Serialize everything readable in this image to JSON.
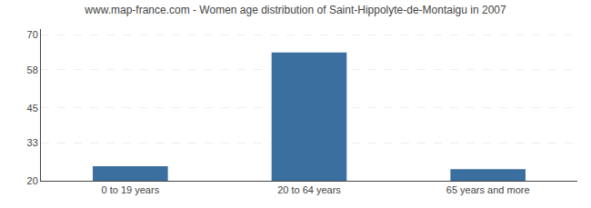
{
  "chart_data": {
    "type": "bar",
    "title": "www.map-france.com - Women age distribution of Saint-Hippolyte-de-Montaigu in 2007",
    "categories": [
      "0 to 19 years",
      "20 to 64 years",
      "65 years and more"
    ],
    "values": [
      25,
      64,
      24
    ],
    "color": "#3a6f9f",
    "ylim": [
      20,
      72
    ],
    "yticks": [
      20,
      33,
      45,
      58,
      70
    ],
    "grid": true
  }
}
